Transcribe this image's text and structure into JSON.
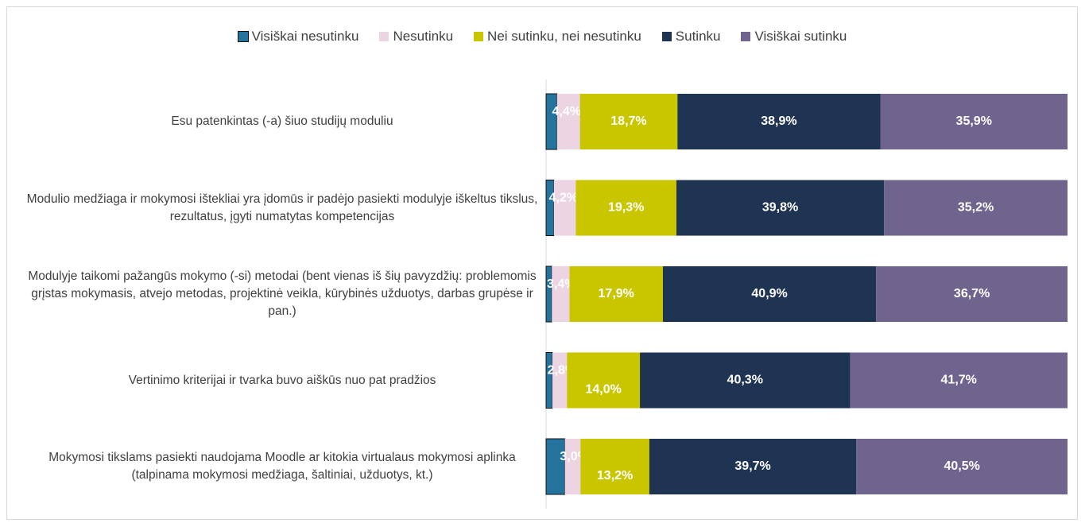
{
  "chart_data": {
    "type": "stacked-bar-horizontal",
    "categories": [
      "Esu patenkintas (-a) šiuo studijų moduliu",
      "Modulio medžiaga ir mokymosi ištekliai yra įdomūs ir padėjo pasiekti modulyje iškeltus tikslus, rezultatus, įgyti numatytas kompetencijas",
      "Modulyje taikomi pažangūs mokymo (-si) metodai (bent vienas iš šių pavyzdžių: problemomis grįstas mokymasis, atvejo metodas, projektinė veikla, kūrybinės užduotys, darbas grupėse ir pan.)",
      "Vertinimo kriterijai ir tvarka buvo aiškūs nuo pat pradžios",
      "Mokymosi tikslams pasiekti naudojama Moodle ar kitokia virtualaus mokymosi aplinka (talpinama mokymosi medžiaga, šaltiniai, užduotys, kt.)"
    ],
    "series": [
      {
        "name": "Visiškai nesutinku",
        "color": "#23739c",
        "values": [
          2.1,
          1.5,
          1.1,
          1.2,
          3.6
        ]
      },
      {
        "name": "Nesutinku",
        "color": "#ecd4e2",
        "values": [
          4.4,
          4.2,
          3.4,
          2.8,
          3.0
        ],
        "value_labels": [
          "4,4%",
          "4,2%",
          "3,4%",
          "2,8%",
          "3,0%"
        ]
      },
      {
        "name": "Nei sutinku, nei nesutinku",
        "color": "#c9c600",
        "values": [
          18.7,
          19.3,
          17.9,
          14.0,
          13.2
        ],
        "value_labels": [
          "18,7%",
          "19,3%",
          "17,9%",
          "14,0%",
          "13,2%"
        ]
      },
      {
        "name": "Sutinku",
        "color": "#1f3352",
        "values": [
          38.9,
          39.8,
          40.9,
          40.3,
          39.7
        ],
        "value_labels": [
          "38,9%",
          "39,8%",
          "40,9%",
          "40,3%",
          "39,7%"
        ]
      },
      {
        "name": "Visiškai sutinku",
        "color": "#6e648e",
        "values": [
          35.9,
          35.2,
          36.7,
          41.7,
          40.5
        ],
        "value_labels": [
          "35,9%",
          "35,2%",
          "36,7%",
          "41,7%",
          "40,5%"
        ]
      }
    ],
    "xlim": [
      0,
      100
    ],
    "legend": "top"
  }
}
